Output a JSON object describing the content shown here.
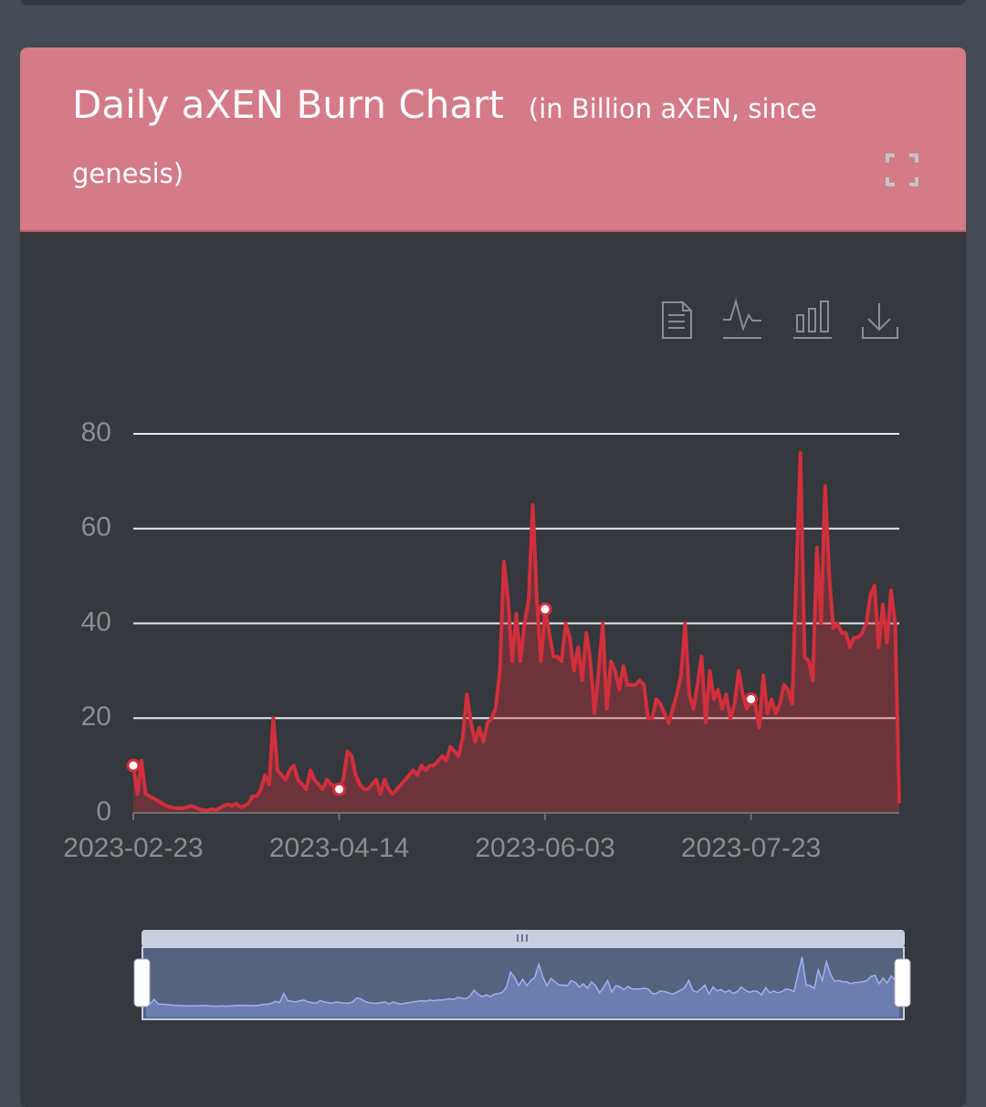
{
  "header": {
    "title": "Daily aXEN Burn Chart",
    "subtitle": "(in Billion aXEN, since genesis)"
  },
  "chart_data": {
    "type": "line",
    "categories": [
      "2023-02-23",
      null,
      null,
      null,
      null,
      null,
      null,
      null,
      null,
      null,
      null,
      null,
      null,
      null,
      null,
      null,
      null,
      null,
      null,
      null,
      null,
      null,
      null,
      null,
      null,
      null,
      null,
      null,
      null,
      null,
      null,
      null,
      null,
      null,
      null,
      null,
      null,
      null,
      null,
      null,
      null,
      null,
      null,
      null,
      null,
      null,
      null,
      null,
      null,
      null,
      "2023-04-14",
      null,
      null,
      null,
      null,
      null,
      null,
      null,
      null,
      null,
      null,
      null,
      null,
      null,
      null,
      null,
      null,
      null,
      null,
      null,
      null,
      null,
      null,
      null,
      null,
      null,
      null,
      null,
      null,
      null,
      null,
      null,
      null,
      null,
      null,
      null,
      null,
      null,
      null,
      null,
      null,
      null,
      null,
      null,
      null,
      null,
      null,
      null,
      null,
      null,
      "2023-06-03",
      null,
      null,
      null,
      null,
      null,
      null,
      null,
      null,
      null,
      null,
      null,
      null,
      null,
      null,
      null,
      null,
      null,
      null,
      null,
      null,
      null,
      null,
      null,
      null,
      null,
      null,
      null,
      null,
      null,
      null,
      null,
      null,
      null,
      null,
      null,
      null,
      null,
      null,
      null,
      null,
      null,
      null,
      null,
      null,
      null,
      null,
      null,
      null,
      null,
      "2023-07-23",
      null,
      null,
      null,
      null,
      null,
      null,
      null,
      null,
      null,
      null,
      null,
      null,
      null,
      null,
      null,
      null,
      null,
      null,
      null,
      null,
      null,
      null,
      null,
      null,
      null,
      null,
      null,
      null,
      null,
      null,
      null,
      null,
      null,
      null,
      null,
      null
    ],
    "values": [
      10,
      4,
      11,
      4,
      3.5,
      3,
      2.5,
      2,
      1.5,
      1.2,
      1,
      1,
      1,
      1.2,
      1.5,
      1.2,
      0.8,
      0.6,
      0.5,
      0.8,
      0.6,
      1,
      1.5,
      1.8,
      1.5,
      2,
      1.2,
      1.5,
      2,
      3.5,
      3.5,
      5,
      8,
      6,
      20,
      9,
      8,
      7,
      9,
      10,
      7,
      6,
      5,
      9,
      7,
      6,
      5,
      7,
      6,
      5.5,
      5,
      7,
      13,
      12,
      8,
      6,
      5,
      5,
      6,
      7,
      4,
      7,
      5,
      4,
      5,
      6,
      7,
      8,
      9,
      8,
      10,
      9,
      10,
      10,
      11,
      12,
      11,
      14,
      13,
      12,
      16,
      25,
      19,
      15,
      18,
      15,
      19,
      20,
      22,
      30,
      53,
      45,
      32,
      42,
      32,
      40,
      45,
      65,
      45,
      32,
      43,
      38,
      33,
      33,
      32,
      40,
      37,
      30,
      35,
      28,
      38,
      32,
      21,
      30,
      40,
      22,
      32,
      30,
      26,
      31,
      27,
      27,
      27,
      28,
      27,
      20,
      20,
      24,
      23,
      21,
      19,
      22,
      25,
      29,
      40,
      25,
      22,
      27,
      33,
      19,
      30,
      24,
      26,
      22,
      25,
      20,
      23,
      30,
      25,
      22,
      24,
      23,
      18,
      29,
      21,
      24,
      21,
      23,
      27,
      26,
      23,
      50,
      76,
      33,
      32,
      28,
      56,
      40,
      69,
      50,
      39,
      40,
      38,
      38,
      35,
      37,
      37,
      38,
      40,
      46,
      48,
      35,
      44,
      36,
      47,
      40,
      2
    ],
    "color": "#d22f3c",
    "ylim": [
      0,
      80
    ],
    "yticks": [
      0,
      20,
      40,
      60,
      80
    ],
    "grid": true
  }
}
